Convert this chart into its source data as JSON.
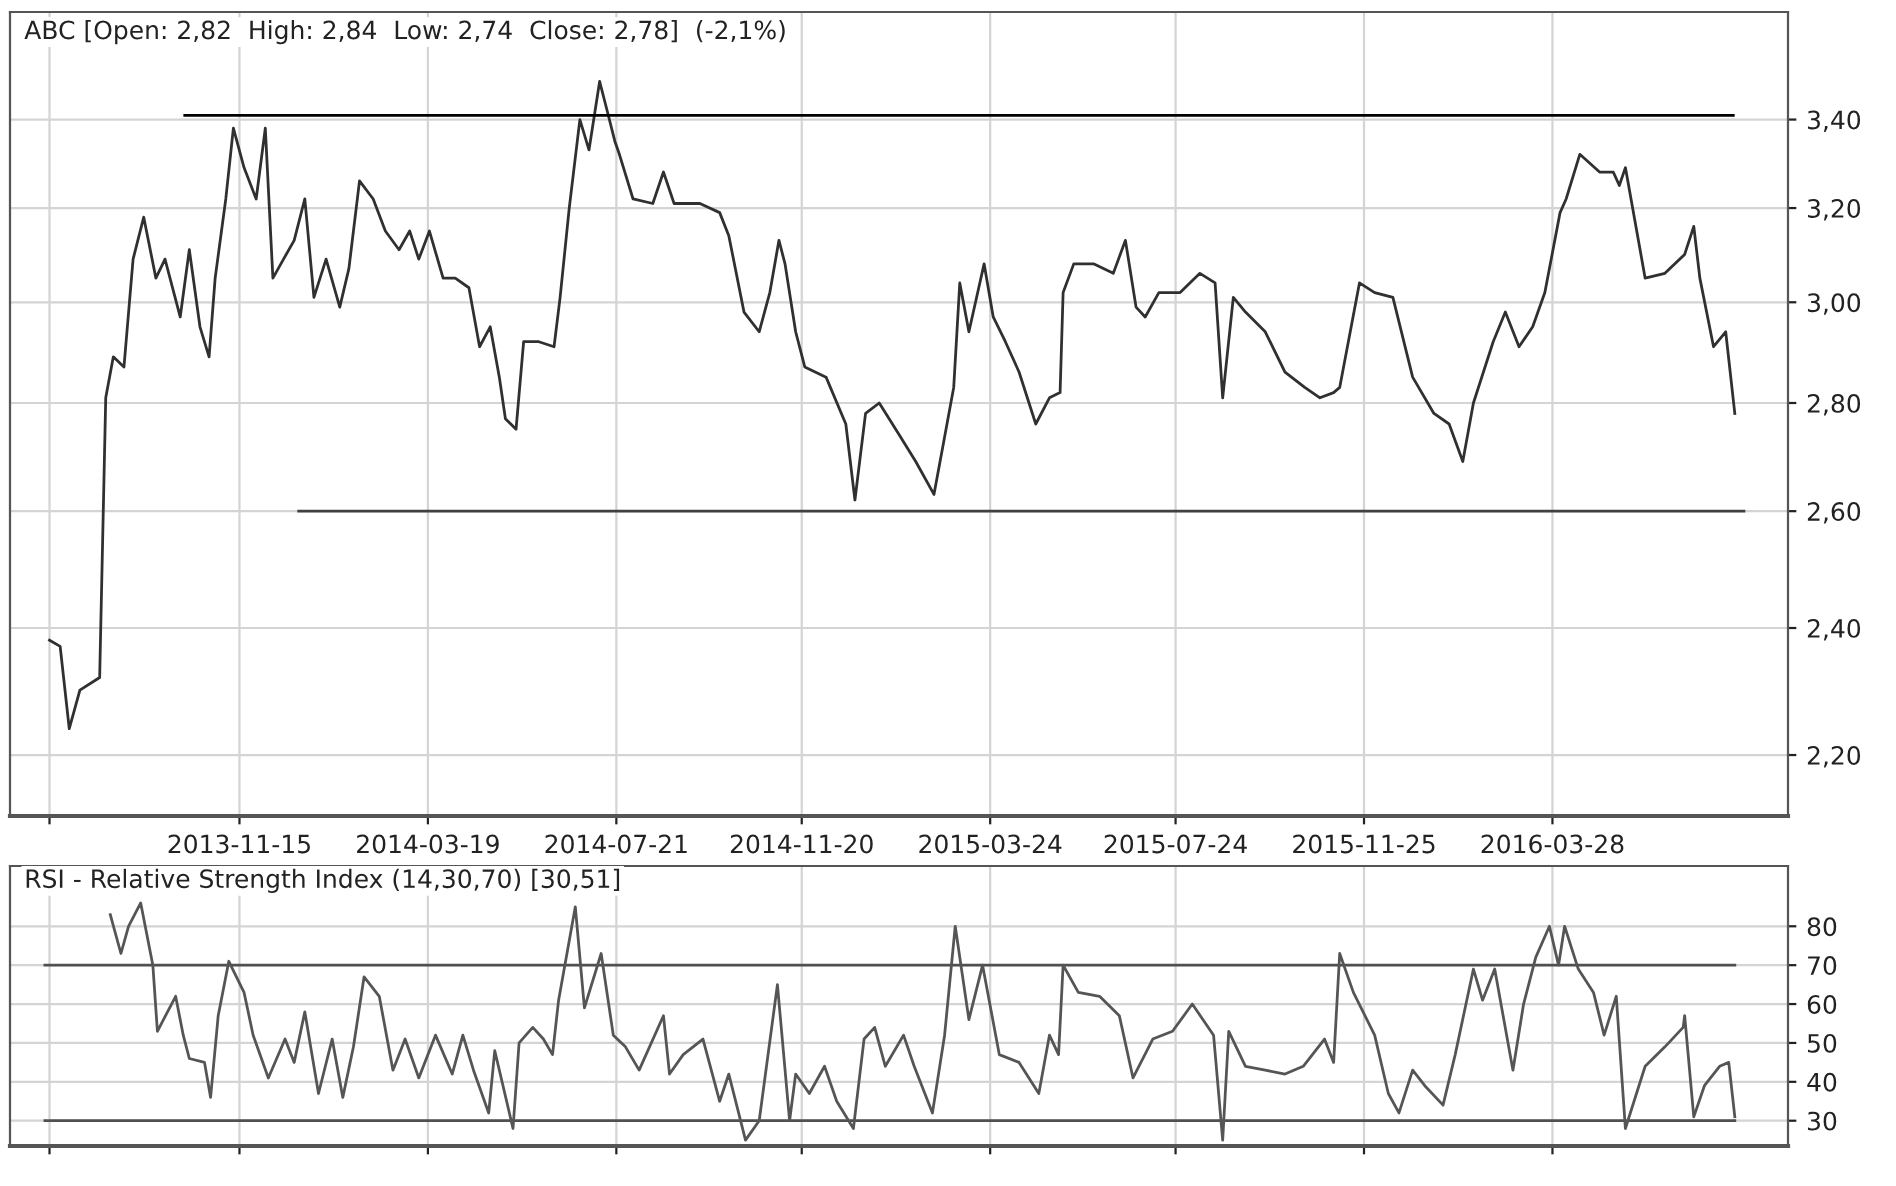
{
  "chart_data": [
    {
      "type": "line",
      "title": "ABC [Open: 2,82  High: 2,84  Low: 2,74  Close: 2,78]  (-2,1%)",
      "log": true,
      "grid": true,
      "xlim": [
        "2013-06-17",
        "2016-08-30"
      ],
      "xticks": [
        {
          "value": "2013-07-13",
          "label": null
        },
        "2013-11-15",
        "2014-03-19",
        "2014-07-21",
        "2014-11-20",
        "2015-03-24",
        "2015-07-24",
        "2015-11-25",
        "2016-03-28"
      ],
      "ylim": [
        2.11,
        3.66
      ],
      "yticks": [
        {
          "value": 2.2,
          "label": "2,20"
        },
        {
          "value": 2.4,
          "label": "2,40"
        },
        {
          "value": 2.6,
          "label": "2,60"
        },
        {
          "value": 2.8,
          "label": "2,80"
        },
        {
          "value": 3.0,
          "label": "3,00"
        },
        {
          "value": 3.2,
          "label": "3,20"
        },
        {
          "value": 3.4,
          "label": "3,40"
        }
      ],
      "series": [
        {
          "color": "#303030",
          "x": [
            "2013-07-13",
            "2013-07-20",
            "2013-07-26",
            "2013-08-02",
            "2013-08-15",
            "2013-08-19",
            "2013-08-24",
            "2013-08-31",
            "2013-09-06",
            "2013-09-13",
            "2013-09-21",
            "2013-09-27",
            "2013-10-07",
            "2013-10-13",
            "2013-10-20",
            "2013-10-26",
            "2013-10-30",
            "2013-11-06",
            "2013-11-11",
            "2013-11-18",
            "2013-11-26",
            "2013-12-02",
            "2013-12-07",
            "2013-12-14",
            "2013-12-21",
            "2013-12-28",
            "2014-01-03",
            "2014-01-11",
            "2014-01-20",
            "2014-01-26",
            "2014-02-02",
            "2014-02-11",
            "2014-02-19",
            "2014-02-28",
            "2014-03-07",
            "2014-03-13",
            "2014-03-20",
            "2014-03-29",
            "2014-04-06",
            "2014-04-15",
            "2014-04-22",
            "2014-04-29",
            "2014-05-05",
            "2014-05-09",
            "2014-05-16",
            "2014-05-21",
            "2014-05-31",
            "2014-06-10",
            "2014-06-14",
            "2014-06-20",
            "2014-06-27",
            "2014-07-03",
            "2014-07-10",
            "2014-07-15",
            "2014-07-20",
            "2014-07-23",
            "2014-08-01",
            "2014-08-14",
            "2014-08-21",
            "2014-08-28",
            "2014-09-14",
            "2014-09-27",
            "2014-10-03",
            "2014-10-13",
            "2014-10-23",
            "2014-10-30",
            "2014-11-05",
            "2014-11-09",
            "2014-11-16",
            "2014-11-22",
            "2014-12-06",
            "2014-12-19",
            "2014-12-25",
            "2015-01-01",
            "2015-01-10",
            "2015-01-23",
            "2015-02-03",
            "2015-02-15",
            "2015-02-21",
            "2015-02-28",
            "2015-03-04",
            "2015-03-10",
            "2015-03-20",
            "2015-03-26",
            "2015-04-03",
            "2015-04-12",
            "2015-04-23",
            "2015-05-02",
            "2015-05-09",
            "2015-05-11",
            "2015-05-18",
            "2015-05-31",
            "2015-06-13",
            "2015-06-21",
            "2015-06-28",
            "2015-07-04",
            "2015-07-13",
            "2015-07-27",
            "2015-08-09",
            "2015-08-19",
            "2015-08-24",
            "2015-08-31",
            "2015-09-08",
            "2015-09-21",
            "2015-10-04",
            "2015-10-17",
            "2015-10-27",
            "2015-11-05",
            "2015-11-09",
            "2015-11-22",
            "2015-12-02",
            "2015-12-14",
            "2015-12-27",
            "2016-01-10",
            "2016-01-20",
            "2016-01-29",
            "2016-02-05",
            "2016-02-18",
            "2016-02-26",
            "2016-03-06",
            "2016-03-15",
            "2016-03-23",
            "2016-04-02",
            "2016-04-06",
            "2016-04-15",
            "2016-04-28",
            "2016-05-07",
            "2016-05-11",
            "2016-05-15",
            "2016-05-28",
            "2016-06-10",
            "2016-06-23",
            "2016-06-29",
            "2016-07-03",
            "2016-07-12",
            "2016-07-20",
            "2016-07-26"
          ],
          "values": [
            2.38,
            2.37,
            2.24,
            2.3,
            2.32,
            2.81,
            2.89,
            2.87,
            3.09,
            3.18,
            3.05,
            3.09,
            2.97,
            3.11,
            2.95,
            2.89,
            3.05,
            3.22,
            3.38,
            3.29,
            3.22,
            3.38,
            3.05,
            3.09,
            3.13,
            3.22,
            3.01,
            3.09,
            2.99,
            3.07,
            3.26,
            3.22,
            3.15,
            3.11,
            3.15,
            3.09,
            3.15,
            3.05,
            3.05,
            3.03,
            2.91,
            2.95,
            2.85,
            2.77,
            2.75,
            2.92,
            2.92,
            2.91,
            3.01,
            3.2,
            3.4,
            3.33,
            3.49,
            3.42,
            3.35,
            3.32,
            3.22,
            3.21,
            3.28,
            3.21,
            3.21,
            3.19,
            3.14,
            2.98,
            2.94,
            3.02,
            3.13,
            3.08,
            2.94,
            2.87,
            2.85,
            2.76,
            2.62,
            2.78,
            2.8,
            2.74,
            2.69,
            2.63,
            2.72,
            2.83,
            3.04,
            2.94,
            3.08,
            2.97,
            2.92,
            2.86,
            2.76,
            2.81,
            2.82,
            3.02,
            3.08,
            3.08,
            3.06,
            3.13,
            2.99,
            2.97,
            3.02,
            3.02,
            3.06,
            3.04,
            2.81,
            3.01,
            2.98,
            2.94,
            2.86,
            2.83,
            2.81,
            2.82,
            2.83,
            3.04,
            3.02,
            3.01,
            2.85,
            2.78,
            2.76,
            2.69,
            2.8,
            2.92,
            2.98,
            2.91,
            2.95,
            3.02,
            3.19,
            3.22,
            3.32,
            3.28,
            3.28,
            3.25,
            3.29,
            3.05,
            3.06,
            3.1,
            3.16,
            3.05,
            2.91,
            2.94,
            2.78
          ]
        },
        {
          "type": "line",
          "color": "#000000",
          "x": [
            "2013-10-10",
            "2016-07-25"
          ],
          "values": [
            3.41,
            3.41
          ]
        },
        {
          "type": "line",
          "color": "#404040",
          "x": [
            "2013-12-24",
            "2016-08-01"
          ],
          "values": [
            2.6,
            2.6
          ]
        }
      ]
    },
    {
      "type": "line",
      "title": "RSI - Relative Strength Index (14,30,70) [30,51]",
      "grid": true,
      "tick_labels": "y",
      "xlim": [
        "2013-06-17",
        "2016-08-30"
      ],
      "xticks": [
        {
          "value": "2013-07-13",
          "label": null
        },
        "2013-11-15",
        "2014-03-19",
        "2014-07-21",
        "2014-11-20",
        "2015-03-24",
        "2015-07-24",
        "2015-11-25",
        "2016-03-28"
      ],
      "ylim": [
        23.5,
        95.5
      ],
      "yticks": [
        30,
        40,
        50,
        60,
        70,
        80
      ],
      "series": [
        {
          "type": "line",
          "color": "#505050",
          "x": [
            "2013-07-10",
            "2016-07-26"
          ],
          "values": [
            70,
            70
          ]
        },
        {
          "type": "line",
          "color": "#505050",
          "x": [
            "2013-07-10",
            "2016-07-26"
          ],
          "values": [
            30,
            30
          ]
        },
        {
          "color": "#555555",
          "x": [
            "2013-08-22",
            "2013-08-29",
            "2013-09-03",
            "2013-09-11",
            "2013-09-19",
            "2013-09-22",
            "2013-10-04",
            "2013-10-09",
            "2013-10-13",
            "2013-10-23",
            "2013-10-27",
            "2013-11-01",
            "2013-11-08",
            "2013-11-18",
            "2013-11-24",
            "2013-12-04",
            "2013-12-15",
            "2013-12-21",
            "2013-12-28",
            "2014-01-06",
            "2014-01-15",
            "2014-01-22",
            "2014-01-29",
            "2014-02-05",
            "2014-02-15",
            "2014-02-24",
            "2014-03-04",
            "2014-03-13",
            "2014-03-24",
            "2014-04-04",
            "2014-04-11",
            "2014-04-18",
            "2014-04-28",
            "2014-05-02",
            "2014-05-14",
            "2014-05-18",
            "2014-05-27",
            "2014-06-03",
            "2014-06-09",
            "2014-06-13",
            "2014-06-24",
            "2014-06-30",
            "2014-07-11",
            "2014-07-19",
            "2014-07-27",
            "2014-08-05",
            "2014-08-21",
            "2014-08-25",
            "2014-09-03",
            "2014-09-16",
            "2014-09-27",
            "2014-10-03",
            "2014-10-14",
            "2014-10-23",
            "2014-11-04",
            "2014-11-12",
            "2014-11-16",
            "2014-11-25",
            "2014-12-05",
            "2014-12-13",
            "2014-12-24",
            "2014-12-31",
            "2015-01-07",
            "2015-01-14",
            "2015-01-26",
            "2015-02-02",
            "2015-02-14",
            "2015-02-22",
            "2015-03-01",
            "2015-03-10",
            "2015-03-19",
            "2015-03-30",
            "2015-04-12",
            "2015-04-25",
            "2015-05-02",
            "2015-05-08",
            "2015-05-11",
            "2015-05-21",
            "2015-06-04",
            "2015-06-17",
            "2015-06-26",
            "2015-07-09",
            "2015-07-22",
            "2015-08-04",
            "2015-08-18",
            "2015-08-24",
            "2015-08-28",
            "2015-09-08",
            "2015-09-21",
            "2015-10-04",
            "2015-10-16",
            "2015-10-30",
            "2015-11-05",
            "2015-11-09",
            "2015-11-18",
            "2015-12-02",
            "2015-12-11",
            "2015-12-18",
            "2015-12-27",
            "2016-01-04",
            "2016-01-16",
            "2016-01-24",
            "2016-02-05",
            "2016-02-11",
            "2016-02-19",
            "2016-03-02",
            "2016-03-09",
            "2016-03-17",
            "2016-03-26",
            "2016-04-01",
            "2016-04-05",
            "2016-04-14",
            "2016-04-24",
            "2016-05-01",
            "2016-05-09",
            "2016-05-15",
            "2016-05-28",
            "2016-06-10",
            "2016-06-22",
            "2016-06-23",
            "2016-06-29",
            "2016-07-06",
            "2016-07-16",
            "2016-07-22",
            "2016-07-26"
          ],
          "values": [
            83,
            73,
            80,
            86,
            70,
            53,
            62,
            52,
            46,
            45,
            36,
            57,
            71,
            63,
            52,
            41,
            51,
            45,
            58,
            37,
            51,
            36,
            49,
            67,
            62,
            43,
            51,
            41,
            52,
            42,
            52,
            43,
            32,
            48,
            28,
            50,
            54,
            51,
            47,
            61,
            85,
            59,
            73,
            52,
            49,
            43,
            57,
            42,
            47,
            51,
            35,
            42,
            25,
            30,
            65,
            30,
            42,
            37,
            44,
            35,
            28,
            51,
            54,
            44,
            52,
            44,
            32,
            52,
            80,
            56,
            70,
            47,
            45,
            37,
            52,
            47,
            70,
            63,
            62,
            57,
            41,
            51,
            53,
            60,
            52,
            25,
            53,
            44,
            43,
            42,
            44,
            51,
            45,
            73,
            63,
            52,
            37,
            32,
            43,
            39,
            34,
            47,
            69,
            61,
            69,
            43,
            60,
            72,
            80,
            70,
            80,
            69,
            63,
            52,
            62,
            28,
            44,
            49,
            54,
            57,
            31,
            39,
            44,
            45,
            31
          ]
        }
      ]
    }
  ]
}
